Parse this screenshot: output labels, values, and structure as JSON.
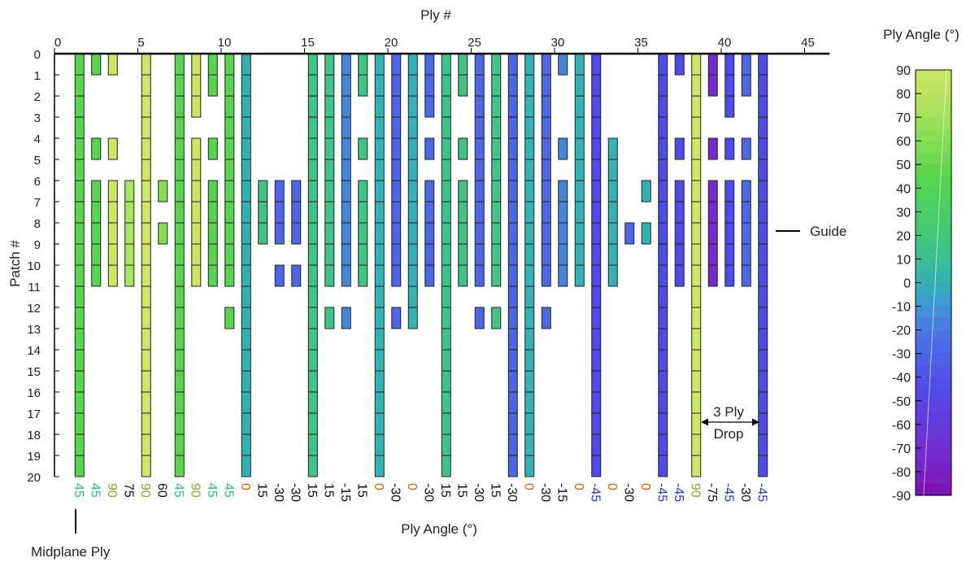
{
  "chart_data": {
    "type": "heatmap",
    "top_axis_label": "Ply #",
    "left_axis_label": "Patch #",
    "bottom_axis_label": "Ply Angle (°)",
    "colorbar_label": "Ply Angle (°)",
    "x_ticks": [
      "0",
      "5",
      "10",
      "15",
      "20",
      "25",
      "30",
      "35",
      "40",
      "45"
    ],
    "x_tick_values": [
      0,
      5,
      10,
      15,
      20,
      25,
      30,
      35,
      40,
      45
    ],
    "y_ticks": [
      "0",
      "1",
      "2",
      "3",
      "4",
      "5",
      "6",
      "7",
      "8",
      "9",
      "10",
      "11",
      "12",
      "13",
      "14",
      "15",
      "16",
      "17",
      "18",
      "19",
      "20"
    ],
    "colorbar_ticks": [
      "90",
      "80",
      "70",
      "60",
      "50",
      "40",
      "30",
      "20",
      "10",
      "0",
      "-10",
      "-20",
      "-30",
      "-40",
      "-50",
      "-60",
      "-70",
      "-80",
      "-90"
    ],
    "colorbar_range": [
      -90,
      90
    ],
    "xlim": [
      0,
      46
    ],
    "ylim": [
      0,
      20
    ],
    "ply_angles": [
      "45",
      "45",
      "90",
      "75",
      "90",
      "60",
      "45",
      "90",
      "45",
      "45",
      "0",
      "15",
      "-30",
      "-30",
      "15",
      "15",
      "-15",
      "15",
      "0",
      "-30",
      "0",
      "-30",
      "15",
      "15",
      "-30",
      "15",
      "-30",
      "0",
      "-30",
      "-15",
      "0",
      "-45",
      "0",
      "-30",
      "0",
      "-45",
      "-45",
      "90",
      "-75",
      "-45",
      "-30",
      "-45"
    ],
    "plies": [
      {
        "ply": 1,
        "angle": 45,
        "segments": [
          [
            0,
            20
          ]
        ]
      },
      {
        "ply": 2,
        "angle": 45,
        "segments": [
          [
            0,
            1
          ],
          [
            4,
            5
          ],
          [
            6,
            11
          ]
        ]
      },
      {
        "ply": 3,
        "angle": 90,
        "segments": [
          [
            0,
            1
          ],
          [
            4,
            5
          ],
          [
            6,
            11
          ]
        ]
      },
      {
        "ply": 4,
        "angle": 75,
        "segments": [
          [
            6,
            11
          ]
        ]
      },
      {
        "ply": 5,
        "angle": 90,
        "segments": [
          [
            0,
            20
          ]
        ]
      },
      {
        "ply": 6,
        "angle": 60,
        "segments": [
          [
            6,
            7
          ],
          [
            8,
            9
          ]
        ]
      },
      {
        "ply": 7,
        "angle": 45,
        "segments": [
          [
            0,
            20
          ]
        ]
      },
      {
        "ply": 8,
        "angle": 90,
        "segments": [
          [
            0,
            3
          ],
          [
            4,
            11
          ]
        ]
      },
      {
        "ply": 9,
        "angle": 45,
        "segments": [
          [
            0,
            2
          ],
          [
            4,
            5
          ],
          [
            6,
            11
          ]
        ]
      },
      {
        "ply": 10,
        "angle": 45,
        "segments": [
          [
            0,
            11
          ],
          [
            12,
            13
          ]
        ]
      },
      {
        "ply": 11,
        "angle": 0,
        "segments": [
          [
            0,
            20
          ]
        ]
      },
      {
        "ply": 12,
        "angle": 15,
        "segments": [
          [
            6,
            9
          ]
        ]
      },
      {
        "ply": 13,
        "angle": -30,
        "segments": [
          [
            6,
            9
          ],
          [
            10,
            11
          ]
        ]
      },
      {
        "ply": 14,
        "angle": -30,
        "segments": [
          [
            6,
            9
          ],
          [
            10,
            11
          ]
        ]
      },
      {
        "ply": 15,
        "angle": 15,
        "segments": [
          [
            0,
            20
          ]
        ]
      },
      {
        "ply": 16,
        "angle": 15,
        "segments": [
          [
            0,
            11
          ],
          [
            12,
            13
          ]
        ]
      },
      {
        "ply": 17,
        "angle": -15,
        "segments": [
          [
            0,
            11
          ],
          [
            12,
            13
          ]
        ]
      },
      {
        "ply": 18,
        "angle": 15,
        "segments": [
          [
            0,
            2
          ],
          [
            4,
            5
          ],
          [
            6,
            11
          ]
        ]
      },
      {
        "ply": 19,
        "angle": 0,
        "segments": [
          [
            0,
            20
          ]
        ]
      },
      {
        "ply": 20,
        "angle": -30,
        "segments": [
          [
            0,
            11
          ],
          [
            12,
            13
          ]
        ]
      },
      {
        "ply": 21,
        "angle": 0,
        "segments": [
          [
            0,
            13
          ]
        ]
      },
      {
        "ply": 22,
        "angle": -30,
        "segments": [
          [
            0,
            3
          ],
          [
            4,
            5
          ],
          [
            6,
            11
          ]
        ]
      },
      {
        "ply": 23,
        "angle": 15,
        "segments": [
          [
            0,
            20
          ]
        ]
      },
      {
        "ply": 24,
        "angle": 15,
        "segments": [
          [
            0,
            2
          ],
          [
            4,
            5
          ],
          [
            6,
            11
          ]
        ]
      },
      {
        "ply": 25,
        "angle": -30,
        "segments": [
          [
            0,
            11
          ],
          [
            12,
            13
          ]
        ]
      },
      {
        "ply": 26,
        "angle": 15,
        "segments": [
          [
            0,
            11
          ],
          [
            12,
            13
          ]
        ]
      },
      {
        "ply": 27,
        "angle": -30,
        "segments": [
          [
            0,
            20
          ]
        ]
      },
      {
        "ply": 28,
        "angle": 0,
        "segments": [
          [
            0,
            20
          ]
        ]
      },
      {
        "ply": 29,
        "angle": -30,
        "segments": [
          [
            0,
            11
          ],
          [
            12,
            13
          ]
        ]
      },
      {
        "ply": 30,
        "angle": -15,
        "segments": [
          [
            0,
            1
          ],
          [
            4,
            5
          ],
          [
            6,
            11
          ]
        ]
      },
      {
        "ply": 31,
        "angle": 0,
        "segments": [
          [
            0,
            11
          ]
        ]
      },
      {
        "ply": 32,
        "angle": -45,
        "segments": [
          [
            0,
            20
          ]
        ]
      },
      {
        "ply": 33,
        "angle": 0,
        "segments": [
          [
            4,
            11
          ]
        ]
      },
      {
        "ply": 34,
        "angle": -30,
        "segments": [
          [
            8,
            9
          ]
        ]
      },
      {
        "ply": 35,
        "angle": 0,
        "segments": [
          [
            6,
            7
          ],
          [
            8,
            9
          ]
        ]
      },
      {
        "ply": 36,
        "angle": -45,
        "segments": [
          [
            0,
            20
          ]
        ]
      },
      {
        "ply": 37,
        "angle": -45,
        "segments": [
          [
            0,
            1
          ],
          [
            4,
            5
          ],
          [
            6,
            11
          ]
        ]
      },
      {
        "ply": 38,
        "angle": 90,
        "segments": [
          [
            0,
            20
          ]
        ]
      },
      {
        "ply": 39,
        "angle": -75,
        "segments": [
          [
            0,
            2
          ],
          [
            4,
            5
          ],
          [
            6,
            11
          ]
        ]
      },
      {
        "ply": 40,
        "angle": -45,
        "segments": [
          [
            0,
            3
          ],
          [
            4,
            5
          ],
          [
            6,
            11
          ]
        ]
      },
      {
        "ply": 41,
        "angle": -30,
        "segments": [
          [
            0,
            2
          ],
          [
            4,
            5
          ],
          [
            6,
            11
          ]
        ]
      },
      {
        "ply": 42,
        "angle": -45,
        "segments": [
          [
            0,
            20
          ]
        ]
      }
    ],
    "angle_label_colors": {
      "45": "#2ec27e",
      "90": "#8aa82a",
      "0": "#c8641c",
      "-45": "#2f35d0",
      "default": "#111111"
    },
    "annotations": {
      "guide": "Guide",
      "drop_line1": "3 Ply",
      "drop_line2": "Drop",
      "midplane": "Midplane Ply"
    }
  }
}
